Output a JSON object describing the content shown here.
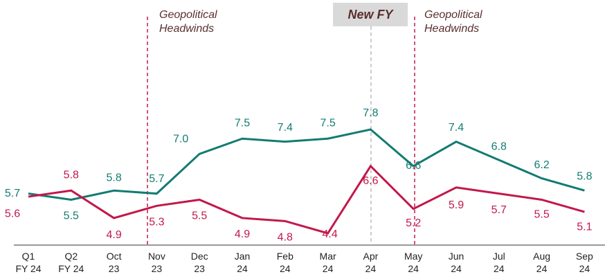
{
  "chart_data": {
    "type": "line",
    "categories": [
      "Q1\nFY 24",
      "Q2\nFY 24",
      "Oct\n23",
      "Nov\n23",
      "Dec\n23",
      "Jan\n24",
      "Feb\n24",
      "Mar\n24",
      "Apr\n24",
      "May\n24",
      "Jun\n24",
      "Jul\n24",
      "Aug\n24",
      "Sep\n24"
    ],
    "series": [
      {
        "color": "#137b72",
        "values": [
          5.7,
          5.5,
          5.8,
          5.7,
          7.0,
          7.5,
          7.4,
          7.5,
          7.8,
          6.6,
          7.4,
          6.8,
          6.2,
          5.8
        ],
        "value_labels": [
          "5.7",
          "5.5",
          "5.8",
          "5.7",
          "7.0",
          "7.5",
          "7.4",
          "7.5",
          "7.8",
          "6.6",
          "7.4",
          "6.8",
          "6.2",
          "5.8"
        ]
      },
      {
        "color": "#c2184b",
        "values": [
          5.6,
          5.8,
          4.9,
          5.3,
          5.5,
          4.9,
          4.8,
          4.4,
          6.6,
          5.2,
          5.9,
          5.7,
          5.5,
          5.1
        ],
        "value_labels": [
          "5.6",
          "5.8",
          "4.9",
          "5.3",
          "5.5",
          "4.9",
          "4.8",
          "4.4",
          "6.6",
          "5.2",
          "5.9",
          "5.7",
          "5.5",
          "5.1"
        ]
      }
    ],
    "annotations": [
      "Geopolitical\nHeadwinds",
      "New FY",
      "Geopolitical\nHeadwinds"
    ]
  }
}
